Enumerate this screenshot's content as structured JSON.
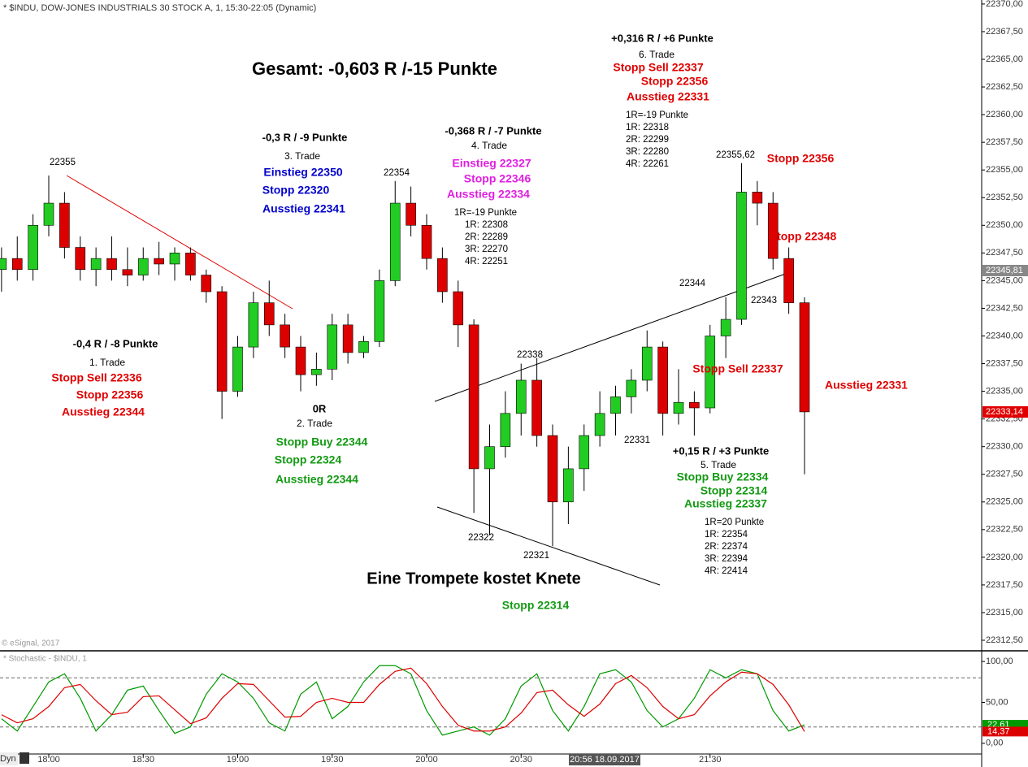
{
  "header": {
    "title": "* $INDU, DOW-JONES INDUSTRIALS 30 STOCK A, 1, 15:30-22:05 (Dynamic)",
    "copyright": "© eSignal, 2017",
    "dyn": "Dyn"
  },
  "chart_data": [
    {
      "type": "candlestick",
      "x": [
        "17:45",
        "17:50",
        "17:55",
        "18:00",
        "18:05",
        "18:10",
        "18:15",
        "18:20",
        "18:25",
        "18:30",
        "18:35",
        "18:40",
        "18:45",
        "18:50",
        "18:55",
        "19:00",
        "19:05",
        "19:10",
        "19:15",
        "19:20",
        "19:25",
        "19:30",
        "19:35",
        "19:40",
        "19:45",
        "19:50",
        "19:55",
        "20:00",
        "20:05",
        "20:10",
        "20:15",
        "20:20",
        "20:25",
        "20:30",
        "20:35",
        "20:40",
        "20:45",
        "20:50",
        "20:55",
        "21:00",
        "21:05",
        "21:10",
        "21:15",
        "21:20",
        "21:25",
        "21:30",
        "21:35",
        "21:40",
        "21:45",
        "21:50",
        "21:55",
        "22:00"
      ],
      "open": [
        22346,
        22347,
        22346,
        22350,
        22352,
        22348,
        22346,
        22347,
        22346,
        22345.5,
        22347,
        22346.5,
        22347.5,
        22345.5,
        22344,
        22335,
        22339,
        22343,
        22341,
        22339,
        22336.5,
        22337,
        22341,
        22338.5,
        22339.5,
        22345,
        22352,
        22350,
        22347,
        22344,
        22341,
        22328,
        22330,
        22333,
        22336,
        22331,
        22325,
        22328,
        22331,
        22333,
        22334.5,
        22336,
        22339,
        22333,
        22334,
        22333.5,
        22340,
        22341.5,
        22353,
        22352,
        22347,
        22343
      ],
      "high": [
        22348,
        22349,
        22351,
        22354.5,
        22353,
        22349,
        22348,
        22349,
        22348,
        22348,
        22348.5,
        22348,
        22348,
        22346,
        22344.5,
        22340,
        22344,
        22345,
        22342,
        22340,
        22338.5,
        22342,
        22342,
        22340,
        22346,
        22354,
        22353.5,
        22351,
        22348,
        22345,
        22341.5,
        22332,
        22335,
        22337.5,
        22338,
        22332,
        22330,
        22332,
        22335,
        22335.5,
        22337,
        22340.5,
        22339.5,
        22337,
        22335,
        22341,
        22343.5,
        22355.62,
        22354,
        22353,
        22348,
        22343.5
      ],
      "low": [
        22344,
        22345,
        22345,
        22349,
        22347,
        22345,
        22344.5,
        22345,
        22344.5,
        22345,
        22345.5,
        22345,
        22345,
        22343,
        22332.5,
        22334.5,
        22338,
        22340,
        22338,
        22335,
        22335.5,
        22336,
        22337.5,
        22338,
        22339,
        22344.5,
        22349,
        22346,
        22343,
        22339,
        22324,
        22322,
        22329,
        22331,
        22330,
        22321,
        22323,
        22326,
        22330,
        22331,
        22333,
        22335,
        22331,
        22332,
        22331,
        22333,
        22338,
        22341,
        22350,
        22346,
        22342,
        22327.5
      ],
      "close": [
        22347,
        22346,
        22350,
        22352,
        22348,
        22346,
        22347,
        22346,
        22345.5,
        22347,
        22346.5,
        22347.5,
        22345.5,
        22344,
        22335,
        22339,
        22343,
        22341,
        22339,
        22336.5,
        22337,
        22341,
        22338.5,
        22339.5,
        22345,
        22352,
        22350,
        22347,
        22344,
        22341,
        22328,
        22330,
        22333,
        22336,
        22331,
        22325,
        22328,
        22331,
        22333,
        22334.5,
        22336,
        22339,
        22333,
        22334,
        22333.5,
        22340,
        22341.5,
        22353,
        22352,
        22347,
        22343,
        22333.14
      ],
      "up_color": "#22cc22",
      "down_color": "#dd0000",
      "ylim": [
        22311.62,
        22370.36
      ],
      "yticks": [
        {
          "value": 22312.5,
          "label": "22312,50"
        },
        {
          "value": 22315,
          "label": "22315,00"
        },
        {
          "value": 22317.5,
          "label": "22317,50"
        },
        {
          "value": 22320,
          "label": "22320,00"
        },
        {
          "value": 22322.5,
          "label": "22322,50"
        },
        {
          "value": 22325,
          "label": "22325,00"
        },
        {
          "value": 22327.5,
          "label": "22327,50"
        },
        {
          "value": 22330,
          "label": "22330,00"
        },
        {
          "value": 22332.5,
          "label": "22332,50"
        },
        {
          "value": 22335,
          "label": "22335,00"
        },
        {
          "value": 22337.5,
          "label": "22337,50"
        },
        {
          "value": 22340,
          "label": "22340,00"
        },
        {
          "value": 22342.5,
          "label": "22342,50"
        },
        {
          "value": 22345,
          "label": "22345,00"
        },
        {
          "value": 22347.5,
          "label": "22347,50"
        },
        {
          "value": 22350,
          "label": "22350,00"
        },
        {
          "value": 22352.5,
          "label": "22352,50"
        },
        {
          "value": 22355,
          "label": "22355,00"
        },
        {
          "value": 22357.5,
          "label": "22357,50"
        },
        {
          "value": 22360,
          "label": "22360,00"
        },
        {
          "value": 22362.5,
          "label": "22362,50"
        },
        {
          "value": 22365,
          "label": "22365,00"
        },
        {
          "value": 22367.5,
          "label": "22367,50"
        },
        {
          "value": 22370,
          "label": "22370,00"
        }
      ],
      "xticks": [
        "18:00",
        "18:30",
        "19:00",
        "19:30",
        "20:00",
        "20:30",
        "21:30"
      ],
      "cursor_label": "20:56 18.09.2017",
      "price_tags": [
        "22345,81",
        "22333,14"
      ],
      "annotations": [
        "Gesamt: -0,603 R /-15 Punkte",
        "-0,4 R / -8 Punkte",
        "1. Trade",
        "Stopp Sell 22336",
        "Stopp 22356",
        "Ausstieg 22344",
        "0R",
        "2. Trade",
        "Stopp Buy 22344",
        "Stopp 22324",
        "Ausstieg 22344",
        "-0,3 R / -9 Punkte",
        "3. Trade",
        "Einstieg 22350",
        "Stopp 22320",
        "Ausstieg 22341",
        "-0,368 R / -7 Punkte",
        "4. Trade",
        "Einstieg 22327",
        "Stopp 22346",
        "Ausstieg 22334",
        "1R=-19 Punkte",
        "1R: 22308",
        "2R: 22289",
        "3R: 22270",
        "4R: 22251",
        "+0,316 R / +6 Punkte",
        "6. Trade",
        "Stopp Sell 22337",
        "Stopp 22356",
        "Ausstieg 22331",
        "1R=-19 Punkte",
        "1R: 22318",
        "2R: 22299",
        "3R: 22280",
        "4R: 22261",
        "+0,15 R / +3 Punkte",
        "5. Trade",
        "Stopp Buy 22334",
        "Stopp 22314",
        "Ausstieg 22337",
        "1R=20 Punkte",
        "1R: 22354",
        "2R: 22374",
        "3R: 22394",
        "4R: 22414",
        "Eine Trompete kostet Knete",
        "Stopp 22314",
        "Stopp 22356",
        "Stopp 22348",
        "Stopp Sell 22337",
        "Ausstieg 22331",
        "22355",
        "22354",
        "22338",
        "22322",
        "22321",
        "22331",
        "22344",
        "22343",
        "22355,62"
      ]
    },
    {
      "type": "line",
      "title": "* Stochastic - $INDU, 1",
      "x": [
        "17:45",
        "17:50",
        "17:55",
        "18:00",
        "18:05",
        "18:10",
        "18:15",
        "18:20",
        "18:25",
        "18:30",
        "18:35",
        "18:40",
        "18:45",
        "18:50",
        "18:55",
        "19:00",
        "19:05",
        "19:10",
        "19:15",
        "19:20",
        "19:25",
        "19:30",
        "19:35",
        "19:40",
        "19:45",
        "19:50",
        "19:55",
        "20:00",
        "20:05",
        "20:10",
        "20:15",
        "20:20",
        "20:25",
        "20:30",
        "20:35",
        "20:40",
        "20:45",
        "20:50",
        "20:55",
        "21:00",
        "21:05",
        "21:10",
        "21:15",
        "21:20",
        "21:25",
        "21:30",
        "21:35",
        "21:40",
        "21:45",
        "21:50",
        "21:55",
        "22:00"
      ],
      "series": [
        {
          "color": "#009900",
          "values": [
            30,
            15,
            45,
            75,
            85,
            55,
            15,
            35,
            65,
            70,
            40,
            12,
            20,
            60,
            85,
            75,
            55,
            25,
            15,
            60,
            75,
            30,
            45,
            75,
            95,
            95,
            85,
            40,
            10,
            15,
            20,
            10,
            30,
            70,
            85,
            40,
            15,
            45,
            85,
            90,
            75,
            40,
            20,
            30,
            55,
            90,
            80,
            90,
            85,
            40,
            15,
            22.61
          ]
        },
        {
          "color": "#dd0000",
          "values": [
            35,
            25,
            30,
            45,
            68,
            72,
            52,
            35,
            38,
            57,
            58,
            41,
            24,
            31,
            55,
            73,
            72,
            52,
            32,
            33,
            50,
            55,
            50,
            50,
            72,
            88,
            92,
            73,
            45,
            22,
            15,
            15,
            20,
            37,
            62,
            65,
            47,
            33,
            48,
            73,
            83,
            68,
            45,
            30,
            35,
            58,
            75,
            87,
            85,
            72,
            47,
            14.37
          ]
        }
      ],
      "ylim": [
        -13.1,
        113.1
      ],
      "yticks": [
        {
          "value": 0,
          "label": "0,00"
        },
        {
          "value": 50,
          "label": "50,00"
        },
        {
          "value": 100,
          "label": "100,00"
        }
      ],
      "levels": [
        20,
        80
      ],
      "tags": [
        "22,61",
        "14,37"
      ]
    }
  ]
}
